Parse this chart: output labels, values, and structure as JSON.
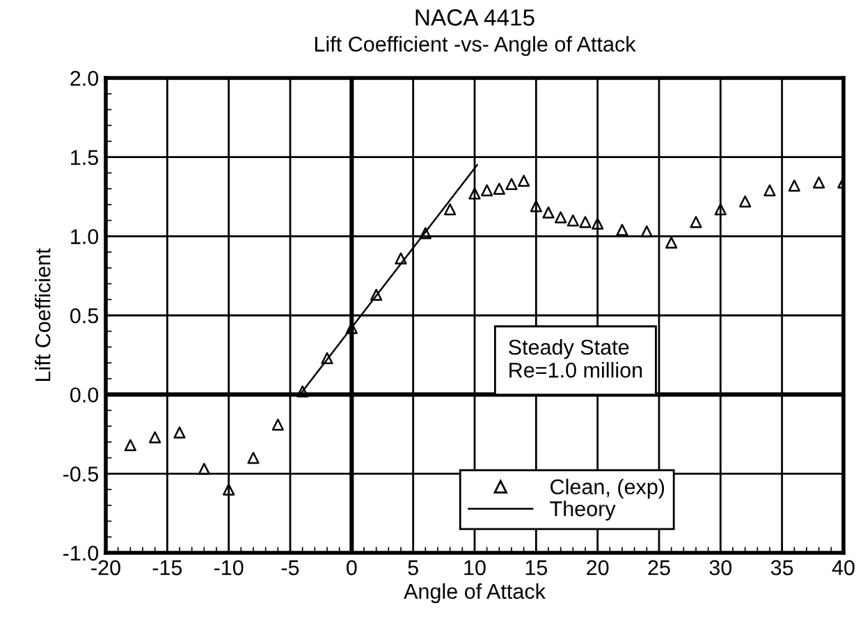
{
  "chart_data": {
    "type": "scatter",
    "title": "NACA 4415",
    "subtitle": "Lift Coefficient -vs- Angle of Attack",
    "xlabel": "Angle of Attack",
    "ylabel": "Lift Coefficient",
    "series": [
      {
        "name": "Clean, (exp)",
        "marker": "triangle",
        "color": "#000000",
        "x": [
          -18,
          -16,
          -14,
          -12,
          -10,
          -8,
          -6,
          -4,
          -2,
          0,
          2,
          4,
          6,
          8,
          10,
          11,
          12,
          13,
          14,
          15,
          16,
          17,
          18,
          19,
          20,
          22,
          24,
          26,
          28,
          30,
          32,
          34,
          36,
          38,
          40
        ],
        "values": [
          -0.32,
          -0.27,
          -0.24,
          -0.47,
          -0.6,
          -0.4,
          -0.19,
          0.02,
          0.23,
          0.42,
          0.63,
          0.86,
          1.02,
          1.17,
          1.27,
          1.29,
          1.3,
          1.33,
          1.35,
          1.19,
          1.15,
          1.12,
          1.1,
          1.09,
          1.08,
          1.04,
          1.03,
          0.96,
          1.09,
          1.17,
          1.22,
          1.29,
          1.32,
          1.34,
          1.34
        ]
      },
      {
        "name": "Theory",
        "type": "line",
        "line_style": "solid",
        "color": "#000000",
        "x": [
          -4.2,
          10.2
        ],
        "values": [
          0.0,
          1.45
        ]
      }
    ],
    "xlim": [
      -20,
      40
    ],
    "xticks": [
      -20,
      -15,
      -10,
      -5,
      0,
      5,
      10,
      15,
      20,
      25,
      30,
      35,
      40
    ],
    "ylim": [
      -1.0,
      2.0
    ],
    "yticks": [
      {
        "value": -1.0,
        "label": "-1.0"
      },
      {
        "value": -0.5,
        "label": "-0.5"
      },
      {
        "value": 0.0,
        "label": "0.0"
      },
      {
        "value": 0.5,
        "label": "0.5"
      },
      {
        "value": 1.0,
        "label": "1.0"
      },
      {
        "value": 1.5,
        "label": "1.5"
      },
      {
        "value": 2.0,
        "label": "2.0"
      }
    ],
    "annotations": [
      "Steady State\nRe=1.0 million"
    ],
    "grid": true,
    "legend": "bottom right"
  }
}
